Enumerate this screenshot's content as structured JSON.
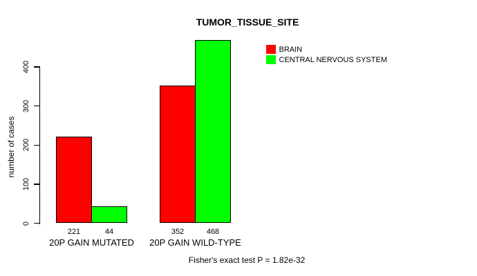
{
  "chart_data": {
    "type": "bar",
    "title": "TUMOR_TISSUE_SITE",
    "categories": [
      "20P GAIN MUTATED",
      "20P GAIN WILD-TYPE"
    ],
    "series": [
      {
        "name": "BRAIN",
        "color": "#ff0000",
        "values": [
          221,
          352
        ]
      },
      {
        "name": "CENTRAL NERVOUS SYSTEM",
        "color": "#00ff00",
        "values": [
          44,
          468
        ]
      }
    ],
    "xlabel": "",
    "ylabel": "number of cases",
    "yticks": [
      0,
      100,
      200,
      300,
      400
    ],
    "ylim": [
      0,
      470
    ],
    "bar_value_labels": [
      [
        221,
        44
      ],
      [
        352,
        468
      ]
    ],
    "legend_position": "top-right",
    "grid": false,
    "bar_border_color": "#000000",
    "axis_color": "#000000",
    "background_color": "#ffffff"
  },
  "footer": {
    "text": "Fisher's exact test P = 1.82e-32"
  }
}
